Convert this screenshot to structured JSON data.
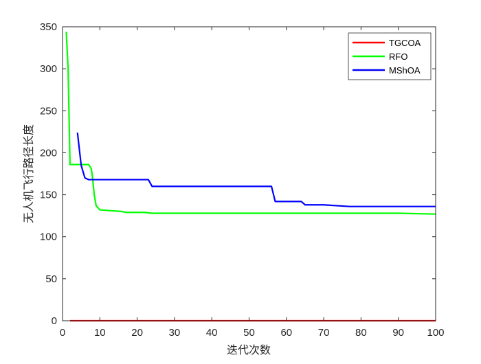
{
  "chart_data": {
    "type": "line",
    "title": "",
    "xlabel": "迭代次数",
    "ylabel": "无人机飞行路径长度",
    "xlim": [
      0,
      100
    ],
    "ylim": [
      0,
      350
    ],
    "xticks": [
      0,
      10,
      20,
      30,
      40,
      50,
      60,
      70,
      80,
      90,
      100
    ],
    "yticks": [
      0,
      50,
      100,
      150,
      200,
      250,
      300,
      350
    ],
    "grid": false,
    "legend_position": "top-right",
    "series": [
      {
        "name": "TGCOA",
        "color": "#ff0000",
        "points": [
          [
            2,
            0
          ],
          [
            100,
            0
          ]
        ]
      },
      {
        "name": "RFO",
        "color": "#00ff00",
        "points": [
          [
            1,
            344
          ],
          [
            1.5,
            300
          ],
          [
            2,
            186
          ],
          [
            7,
            186
          ],
          [
            7.7,
            181
          ],
          [
            8,
            172
          ],
          [
            8.5,
            150
          ],
          [
            9,
            137
          ],
          [
            10,
            132
          ],
          [
            13,
            131
          ],
          [
            16,
            130
          ],
          [
            17,
            129
          ],
          [
            22,
            129
          ],
          [
            24,
            128
          ],
          [
            50,
            128
          ],
          [
            90,
            128
          ],
          [
            100,
            127
          ]
        ]
      },
      {
        "name": "MShOA",
        "color": "#0000ff",
        "points": [
          [
            4,
            224
          ],
          [
            5,
            185
          ],
          [
            6,
            170
          ],
          [
            7,
            168
          ],
          [
            12,
            168
          ],
          [
            23,
            168
          ],
          [
            24,
            160
          ],
          [
            56,
            160
          ],
          [
            57,
            142
          ],
          [
            64,
            142
          ],
          [
            65,
            138
          ],
          [
            70,
            138
          ],
          [
            77,
            136
          ],
          [
            100,
            136
          ]
        ]
      }
    ]
  }
}
